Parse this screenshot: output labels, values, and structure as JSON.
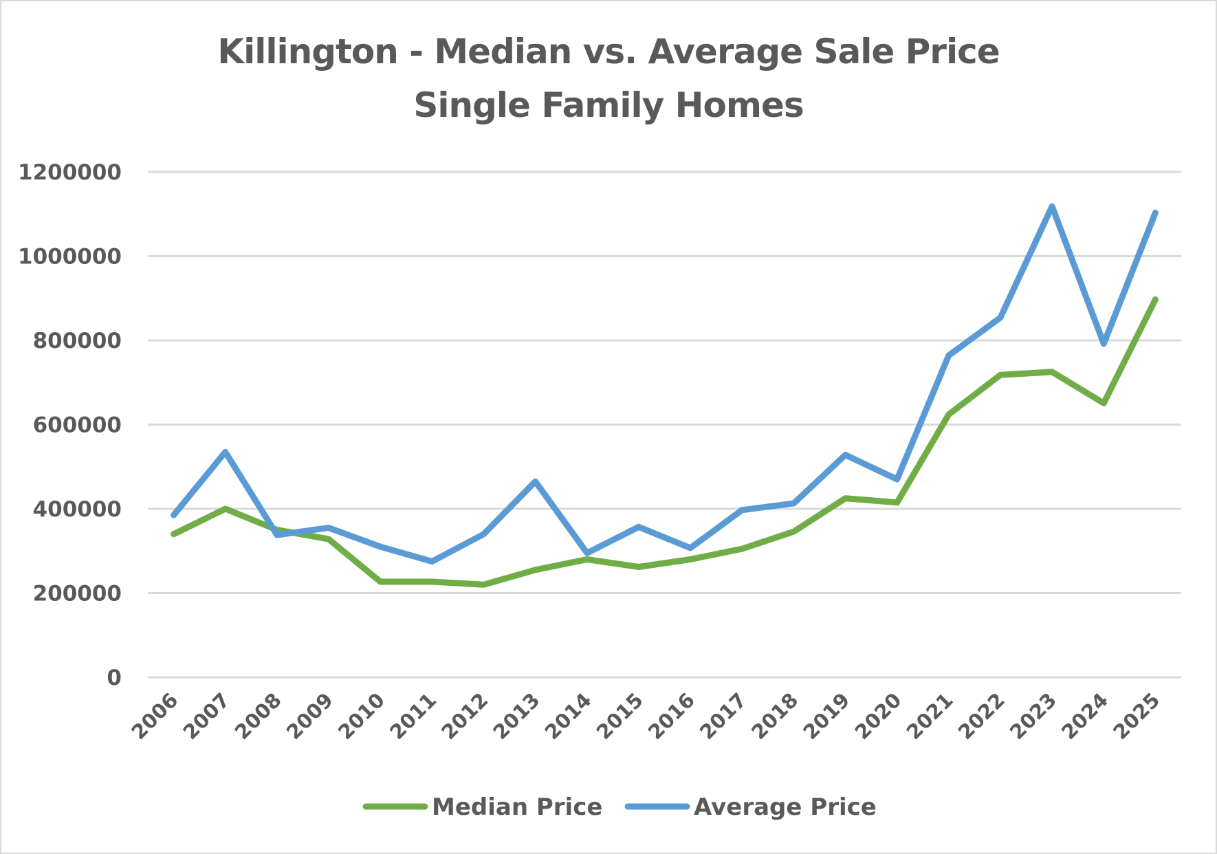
{
  "chart_data": {
    "type": "line",
    "title": "Killington - Median vs. Average Sale Price",
    "subtitle": "Single Family Homes",
    "xlabel": "",
    "ylabel": "",
    "categories": [
      "2006",
      "2007",
      "2008",
      "2009",
      "2010",
      "2011",
      "2012",
      "2013",
      "2014",
      "2015",
      "2016",
      "2017",
      "2018",
      "2019",
      "2020",
      "2021",
      "2022",
      "2023",
      "2024",
      "2025"
    ],
    "ylim": [
      0,
      1200000
    ],
    "yticks": [
      "0",
      "200000",
      "400000",
      "600000",
      "800000",
      "1000000",
      "1200000"
    ],
    "ytick_values": [
      0,
      200000,
      400000,
      600000,
      800000,
      1000000,
      1200000
    ],
    "grid": true,
    "legend_position": "bottom",
    "series": [
      {
        "name": "Median Price",
        "color": "#70ad47",
        "values": [
          340000,
          400000,
          350000,
          328000,
          227000,
          227000,
          220000,
          255000,
          280000,
          262000,
          280000,
          305000,
          346000,
          425000,
          415000,
          624000,
          718000,
          725000,
          651000,
          897000
        ]
      },
      {
        "name": "Average Price",
        "color": "#5b9bd5",
        "values": [
          385000,
          535000,
          338000,
          355000,
          310000,
          275000,
          340000,
          465000,
          295000,
          357000,
          307000,
          397000,
          413000,
          528000,
          470000,
          764000,
          854000,
          1118000,
          792000,
          1103000
        ]
      }
    ]
  },
  "colors": {
    "text": "#595959",
    "grid": "#d9d9d9",
    "border": "#d9d9d9"
  }
}
